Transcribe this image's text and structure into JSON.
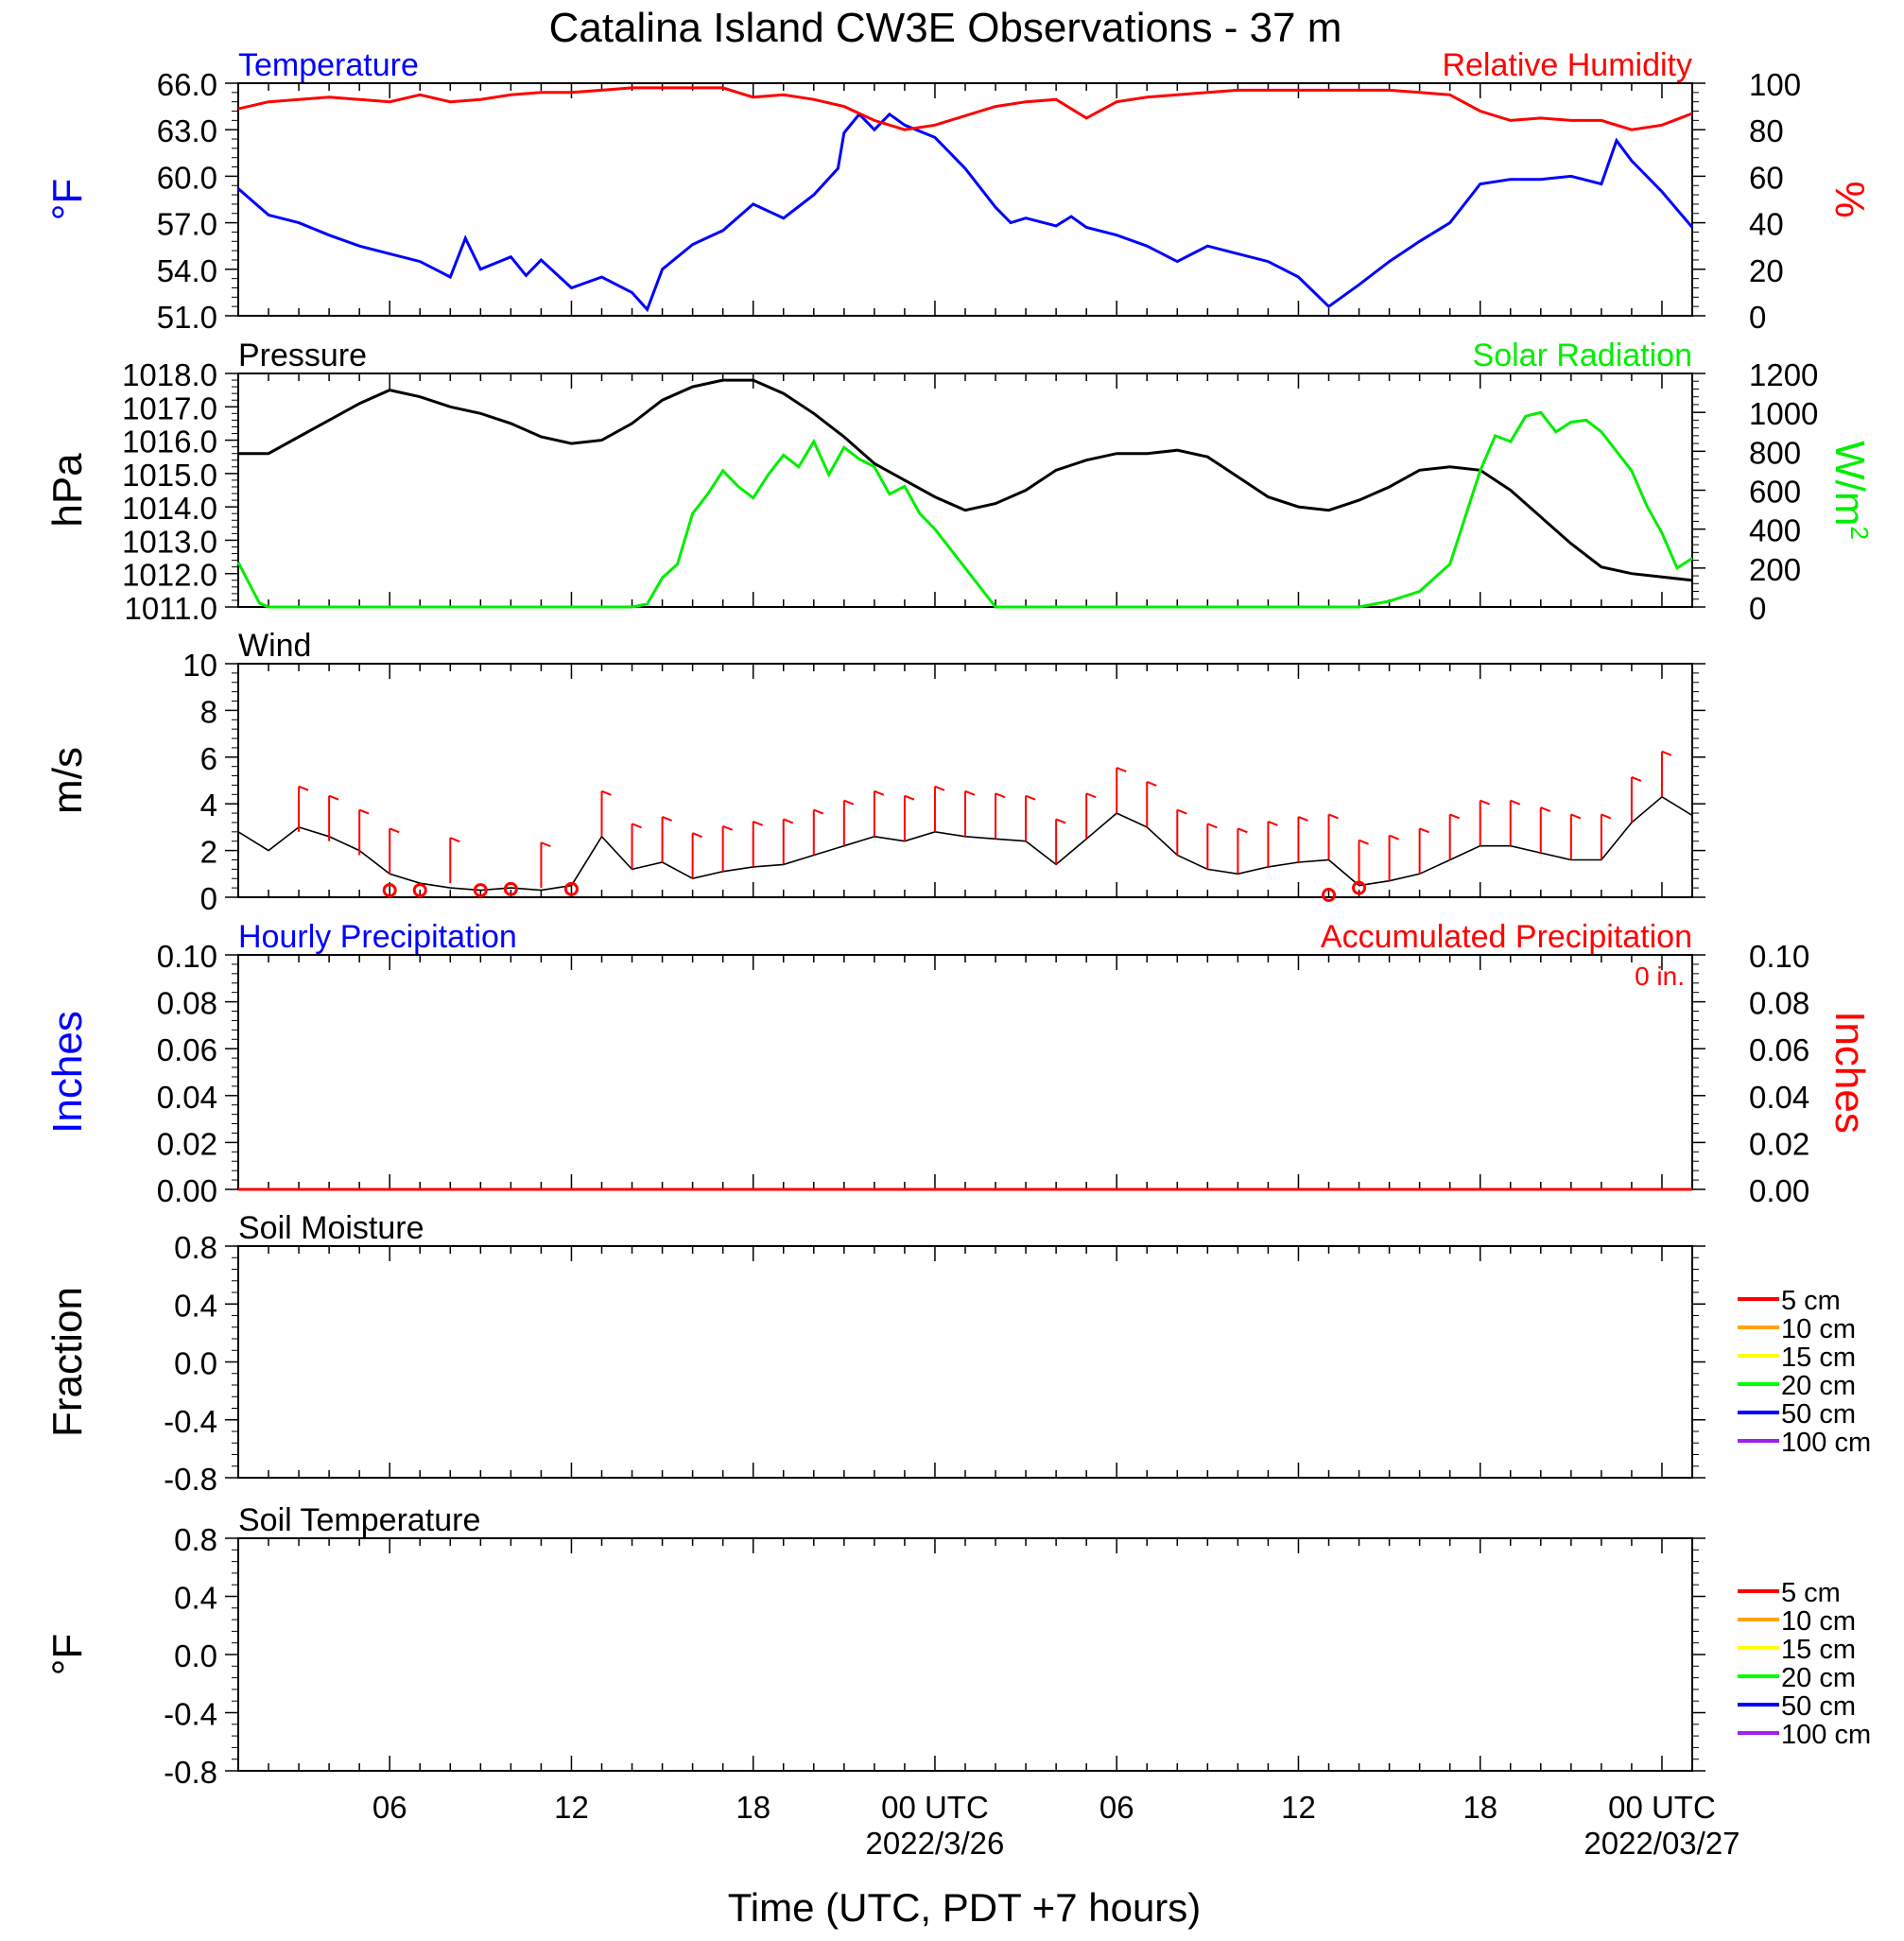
{
  "title": "Catalina Island CW3E Observations - 37 m",
  "x_axis": {
    "label": "Time (UTC, PDT +7 hours)",
    "ticks": [
      {
        "h": 6,
        "label": "06",
        "sub": ""
      },
      {
        "h": 12,
        "label": "12",
        "sub": ""
      },
      {
        "h": 18,
        "label": "18",
        "sub": ""
      },
      {
        "h": 24,
        "label": "00 UTC",
        "sub": "2022/3/26"
      },
      {
        "h": 30,
        "label": "06",
        "sub": ""
      },
      {
        "h": 36,
        "label": "12",
        "sub": ""
      },
      {
        "h": 42,
        "label": "18",
        "sub": ""
      },
      {
        "h": 48,
        "label": "00 UTC",
        "sub": "2022/03/27"
      }
    ],
    "range_hours": [
      1,
      49
    ]
  },
  "colors": {
    "blue": "#0000ff",
    "red": "#ff0000",
    "green": "#00ee00",
    "black": "#000000",
    "orange": "#ffa500",
    "yellow": "#ffff00",
    "purple": "#a020f0",
    "navy": "#0000ff",
    "lime": "#00ff00"
  },
  "chart_data": [
    {
      "type": "line",
      "panel": "temperature_humidity",
      "left_title": "Temperature",
      "right_title": "Relative Humidity",
      "ylabel_left": "°F",
      "ylabel_right": "%",
      "ylim_left": [
        51,
        66
      ],
      "ylim_right": [
        0,
        100
      ],
      "left_ticks": [
        "66.0",
        "63.0",
        "60.0",
        "57.0",
        "54.0",
        "51.0"
      ],
      "right_ticks": [
        "100",
        "80",
        "60",
        "40",
        "20",
        "0"
      ],
      "series": [
        {
          "name": "Temperature",
          "axis": "left",
          "color": "#0000ff",
          "x": [
            1,
            2,
            3,
            4,
            5,
            6,
            7,
            8,
            8.5,
            9,
            10,
            10.5,
            11,
            12,
            13,
            14,
            14.5,
            15,
            16,
            17,
            18,
            19,
            20,
            20.8,
            21,
            21.5,
            22,
            22.5,
            23,
            24,
            25,
            26,
            26.5,
            27,
            28,
            28.5,
            29,
            30,
            31,
            32,
            33,
            34,
            35,
            36,
            37,
            38,
            39,
            40,
            41,
            42,
            43,
            44,
            45,
            46,
            46.5,
            47,
            48,
            49
          ],
          "y": [
            59.2,
            57.5,
            57.0,
            56.2,
            55.5,
            55.0,
            54.5,
            53.5,
            56.0,
            54.0,
            54.8,
            53.6,
            54.6,
            52.8,
            53.5,
            52.5,
            51.4,
            54.0,
            55.6,
            56.5,
            58.2,
            57.3,
            58.8,
            60.5,
            62.8,
            64.0,
            63.0,
            64.0,
            63.3,
            62.5,
            60.5,
            58.0,
            57.0,
            57.3,
            56.8,
            57.4,
            56.7,
            56.2,
            55.5,
            54.5,
            55.5,
            55.0,
            54.5,
            53.5,
            51.6,
            53.0,
            54.5,
            55.8,
            57.0,
            59.5,
            59.8,
            59.8,
            60.0,
            59.5,
            62.3,
            61.0,
            59.0,
            56.7
          ]
        },
        {
          "name": "Relative Humidity",
          "axis": "right",
          "color": "#ff0000",
          "x": [
            1,
            2,
            3,
            4,
            5,
            6,
            7,
            8,
            9,
            10,
            11,
            12,
            13,
            14,
            15,
            16,
            17,
            18,
            19,
            20,
            21,
            22,
            23,
            24,
            25,
            26,
            27,
            28,
            29,
            30,
            31,
            32,
            33,
            34,
            35,
            36,
            37,
            38,
            39,
            40,
            41,
            42,
            43,
            44,
            45,
            46,
            47,
            48,
            49
          ],
          "y": [
            89,
            92,
            93,
            94,
            93,
            92,
            95,
            92,
            93,
            95,
            96,
            96,
            97,
            98,
            98,
            98,
            98,
            94,
            95,
            93,
            90,
            84,
            80,
            82,
            86,
            90,
            92,
            93,
            85,
            92,
            94,
            95,
            96,
            97,
            97,
            97,
            97,
            97,
            97,
            96,
            95,
            88,
            84,
            85,
            84,
            84,
            80,
            82,
            87
          ]
        }
      ]
    },
    {
      "type": "line",
      "panel": "pressure_solar",
      "left_title": "Pressure",
      "right_title": "Solar Radiation",
      "ylabel_left": "hPa",
      "ylabel_right": "W/m",
      "ylabel_right_sup": "2",
      "ylim_left": [
        1011,
        1018
      ],
      "ylim_right": [
        0,
        1200
      ],
      "left_ticks": [
        "1018.0",
        "1017.0",
        "1016.0",
        "1015.0",
        "1014.0",
        "1013.0",
        "1012.0",
        "1011.0"
      ],
      "right_ticks": [
        "1200",
        "1000",
        "800",
        "600",
        "400",
        "200",
        "0"
      ],
      "series": [
        {
          "name": "Pressure",
          "axis": "left",
          "color": "#000000",
          "x": [
            1,
            2,
            3,
            4,
            5,
            6,
            7,
            8,
            9,
            10,
            11,
            12,
            13,
            14,
            15,
            16,
            17,
            18,
            19,
            20,
            21,
            22,
            23,
            24,
            25,
            26,
            27,
            28,
            29,
            30,
            31,
            32,
            33,
            34,
            35,
            36,
            37,
            38,
            39,
            40,
            41,
            42,
            43,
            44,
            45,
            46,
            47,
            48,
            49
          ],
          "y": [
            1015.6,
            1015.6,
            1016.1,
            1016.6,
            1017.1,
            1017.5,
            1017.3,
            1017.0,
            1016.8,
            1016.5,
            1016.1,
            1015.9,
            1016.0,
            1016.5,
            1017.2,
            1017.6,
            1017.8,
            1017.8,
            1017.4,
            1016.8,
            1016.1,
            1015.3,
            1014.8,
            1014.3,
            1013.9,
            1014.1,
            1014.5,
            1015.1,
            1015.4,
            1015.6,
            1015.6,
            1015.7,
            1015.5,
            1014.9,
            1014.3,
            1014.0,
            1013.9,
            1014.2,
            1014.6,
            1015.1,
            1015.2,
            1015.1,
            1014.5,
            1013.7,
            1012.9,
            1012.2,
            1012.0,
            1011.9,
            1011.8
          ]
        },
        {
          "name": "Solar Radiation",
          "axis": "right",
          "color": "#00ee00",
          "x": [
            1,
            1.7,
            2,
            14,
            14.5,
            15,
            15.5,
            16,
            16.5,
            17,
            17.5,
            18,
            18.5,
            19,
            19.5,
            20,
            20.5,
            21,
            21.5,
            22,
            22.5,
            23,
            23.5,
            24,
            24.5,
            25,
            25.5,
            26,
            37,
            38,
            39,
            40,
            41,
            42,
            42.5,
            43,
            43.5,
            44,
            44.5,
            45,
            45.5,
            46,
            46.5,
            47,
            47.5,
            48,
            48.5,
            49
          ],
          "y": [
            230,
            20,
            0,
            0,
            15,
            150,
            220,
            480,
            580,
            700,
            620,
            560,
            680,
            780,
            720,
            850,
            680,
            820,
            760,
            720,
            580,
            620,
            480,
            400,
            300,
            200,
            100,
            0,
            0,
            0,
            30,
            80,
            220,
            700,
            880,
            850,
            980,
            1000,
            900,
            950,
            960,
            900,
            800,
            700,
            520,
            380,
            200,
            250
          ]
        }
      ]
    },
    {
      "type": "line",
      "panel": "wind",
      "left_title": "Wind",
      "ylabel_left": "m/s",
      "ylim_left": [
        0,
        10
      ],
      "left_ticks": [
        "10",
        "8",
        "6",
        "4",
        "2",
        "0"
      ],
      "series": [
        {
          "name": "Wind",
          "axis": "left",
          "color": "#000000",
          "x": [
            1,
            2,
            3,
            4,
            5,
            6,
            7,
            8,
            9,
            10,
            11,
            12,
            13,
            14,
            15,
            16,
            17,
            18,
            19,
            20,
            21,
            22,
            23,
            24,
            25,
            26,
            27,
            28,
            29,
            30,
            31,
            32,
            33,
            34,
            35,
            36,
            37,
            38,
            39,
            40,
            41,
            42,
            43,
            44,
            45,
            46,
            47,
            48,
            49
          ],
          "y": [
            2.8,
            2.0,
            3.0,
            2.6,
            2.0,
            1.0,
            0.6,
            0.4,
            0.3,
            0.4,
            0.3,
            0.5,
            2.6,
            1.2,
            1.5,
            0.8,
            1.1,
            1.3,
            1.4,
            1.8,
            2.2,
            2.6,
            2.4,
            2.8,
            2.6,
            2.5,
            2.4,
            1.4,
            2.5,
            3.6,
            3.0,
            1.8,
            1.2,
            1.0,
            1.3,
            1.5,
            1.6,
            0.5,
            0.7,
            1.0,
            1.6,
            2.2,
            2.2,
            1.9,
            1.6,
            1.6,
            3.2,
            4.3,
            3.5
          ]
        },
        {
          "name": "Wind barbs",
          "axis": "left",
          "color": "#ff0000",
          "barbs_x": [
            3,
            4,
            5,
            6,
            8,
            11,
            13,
            14,
            15,
            16,
            17,
            18,
            19,
            20,
            21,
            22,
            23,
            24,
            25,
            26,
            27,
            28,
            29,
            30,
            31,
            32,
            33,
            34,
            35,
            36,
            37,
            38,
            39,
            40,
            41,
            42,
            43,
            44,
            45,
            46,
            47,
            48
          ],
          "barbs_y": [
            2.8,
            2.4,
            1.8,
            1.0,
            0.6,
            0.4,
            2.6,
            1.2,
            1.5,
            0.8,
            1.1,
            1.3,
            1.4,
            1.8,
            2.2,
            2.6,
            2.4,
            2.8,
            2.6,
            2.5,
            2.4,
            1.4,
            2.5,
            3.6,
            3.0,
            1.8,
            1.2,
            1.0,
            1.3,
            1.5,
            1.6,
            0.5,
            0.7,
            1.0,
            1.6,
            2.2,
            2.2,
            1.9,
            1.6,
            1.6,
            3.2,
            4.3
          ],
          "calm_x": [
            6,
            7,
            9,
            10,
            12,
            37,
            38
          ],
          "calm_y": [
            0.3,
            0.3,
            0.3,
            0.35,
            0.35,
            0.1,
            0.4
          ]
        }
      ]
    },
    {
      "type": "line",
      "panel": "precipitation",
      "left_title": "Hourly Precipitation",
      "right_title": "Accumulated Precipitation",
      "annotation": "0 in.",
      "ylabel_left": "Inches",
      "ylabel_right": "Inches",
      "ylim_left": [
        0,
        0.1
      ],
      "ylim_right": [
        0,
        0.1
      ],
      "left_ticks": [
        "0.10",
        "0.08",
        "0.06",
        "0.04",
        "0.02",
        "0.00"
      ],
      "right_ticks": [
        "0.10",
        "0.08",
        "0.06",
        "0.04",
        "0.02",
        "0.00"
      ],
      "series": [
        {
          "name": "Accumulated Precipitation",
          "axis": "right",
          "color": "#ff0000",
          "x": [
            1,
            49
          ],
          "y": [
            0,
            0
          ]
        }
      ]
    },
    {
      "type": "line",
      "panel": "soil_moisture",
      "left_title": "Soil Moisture",
      "ylabel_left": "Fraction",
      "left_ticks": [
        "0.8",
        "0.4",
        "0.0",
        "-0.4",
        "-0.8"
      ],
      "legend": [
        {
          "label": "5 cm",
          "color": "#ff0000"
        },
        {
          "label": "10 cm",
          "color": "#ffa500"
        },
        {
          "label": "15 cm",
          "color": "#ffff00"
        },
        {
          "label": "20 cm",
          "color": "#00ff00"
        },
        {
          "label": "50 cm",
          "color": "#0000ff"
        },
        {
          "label": "100 cm",
          "color": "#a020f0"
        }
      ]
    },
    {
      "type": "line",
      "panel": "soil_temperature",
      "left_title": "Soil Temperature",
      "ylabel_left": "°F",
      "left_ticks": [
        "0.8",
        "0.4",
        "0.0",
        "-0.4",
        "-0.8"
      ],
      "legend": [
        {
          "label": "5 cm",
          "color": "#ff0000"
        },
        {
          "label": "10 cm",
          "color": "#ffa500"
        },
        {
          "label": "15 cm",
          "color": "#ffff00"
        },
        {
          "label": "20 cm",
          "color": "#00ff00"
        },
        {
          "label": "50 cm",
          "color": "#0000ff"
        },
        {
          "label": "100 cm",
          "color": "#a020f0"
        }
      ]
    }
  ]
}
